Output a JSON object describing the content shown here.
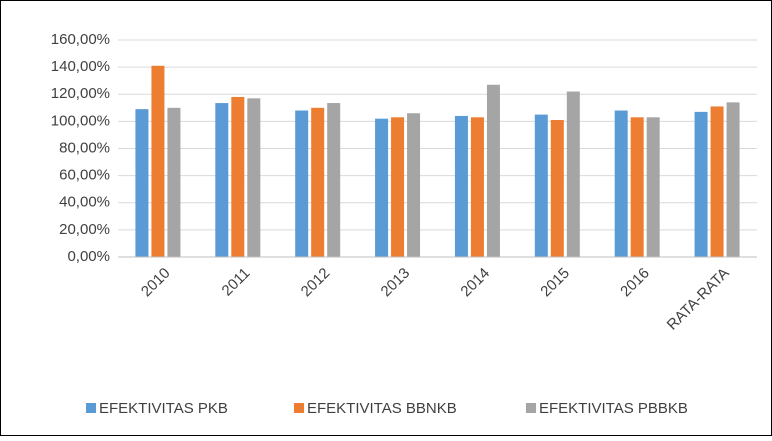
{
  "chart_data": {
    "type": "bar",
    "categories": [
      "2010",
      "2011",
      "2012",
      "2013",
      "2014",
      "2015",
      "2016",
      "RATA-RATA"
    ],
    "series": [
      {
        "name": "EFEKTIVITAS PKB",
        "color": "#5b9bd5",
        "values": [
          109,
          113.5,
          108,
          102,
          104,
          105,
          108,
          107
        ]
      },
      {
        "name": "EFEKTIVITAS BBNKB",
        "color": "#ed7d31",
        "values": [
          141,
          118,
          110,
          103,
          103,
          101,
          103,
          111
        ]
      },
      {
        "name": "EFEKTIVITAS PBBKB",
        "color": "#a5a5a5",
        "values": [
          110,
          117,
          113.5,
          106,
          127,
          122,
          103,
          114
        ]
      }
    ],
    "ylim": [
      0,
      160
    ],
    "yticks": [
      {
        "value": 0,
        "label": "0,00%"
      },
      {
        "value": 20,
        "label": "20,00%"
      },
      {
        "value": 40,
        "label": "40,00%"
      },
      {
        "value": 60,
        "label": "60,00%"
      },
      {
        "value": 80,
        "label": "80,00%"
      },
      {
        "value": 100,
        "label": "100,00%"
      },
      {
        "value": 120,
        "label": "120,00%"
      },
      {
        "value": 140,
        "label": "140,00%"
      },
      {
        "value": 160,
        "label": "160,00%"
      }
    ],
    "grid": true,
    "legend": "bottom"
  }
}
